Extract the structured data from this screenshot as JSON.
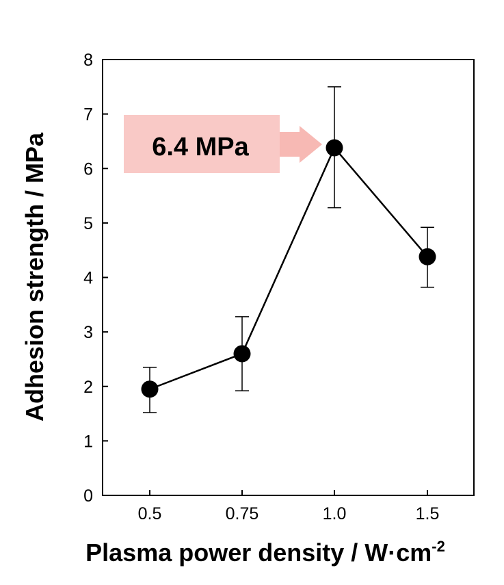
{
  "chart_data": {
    "type": "line",
    "xlabel": "Plasma power density / W·cm",
    "xlabel_superscript": "-2",
    "ylabel": "Adhesion strength / MPa",
    "categories": [
      "0.5",
      "0.75",
      "1.0",
      "1.5"
    ],
    "ylim": [
      0,
      8
    ],
    "yticks": [
      "0",
      "1",
      "2",
      "3",
      "4",
      "5",
      "6",
      "7",
      "8"
    ],
    "series": [
      {
        "values": [
          1.95,
          2.6,
          6.38,
          4.38
        ],
        "error_low": [
          1.52,
          1.92,
          5.28,
          3.82
        ],
        "error_high": [
          2.35,
          3.28,
          7.5,
          4.92
        ],
        "color": "#000000"
      }
    ],
    "annotation": {
      "text": "6.4 MPa",
      "points_to_category": "1.0",
      "box_color": "#f9c9c6",
      "arrow_color": "#f7b9b4"
    },
    "grid": false,
    "legend": "none"
  }
}
